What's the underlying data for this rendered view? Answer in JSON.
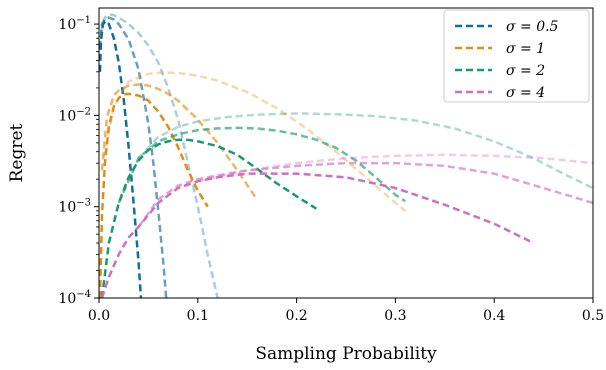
{
  "chart_data": {
    "type": "line",
    "xlabel": "Sampling Probability",
    "ylabel": "Regret",
    "xlim": [
      0.0,
      0.5
    ],
    "ylim": [
      0.0001,
      0.15
    ],
    "yscale": "log",
    "x_ticks": [
      0.0,
      0.1,
      0.2,
      0.3,
      0.4,
      0.5
    ],
    "x_tick_labels": [
      "0.0",
      "0.1",
      "0.2",
      "0.3",
      "0.4",
      "0.5"
    ],
    "y_ticks": [
      0.0001,
      0.001,
      0.01,
      0.1
    ],
    "y_tick_labels": [
      {
        "base": "10",
        "exp": "−4"
      },
      {
        "base": "10",
        "exp": "−3"
      },
      {
        "base": "10",
        "exp": "−2"
      },
      {
        "base": "10",
        "exp": "−1"
      }
    ],
    "grid": false,
    "legend_position": "top-right",
    "legend": [
      {
        "label": "σ = 0.5",
        "color": "#0f6ea0"
      },
      {
        "label": "σ = 1",
        "color": "#e08e12"
      },
      {
        "label": "σ = 2",
        "color": "#149a72"
      },
      {
        "label": "σ = 4",
        "color": "#cf6fbd"
      }
    ],
    "series": [
      {
        "name": "σ = 0.5",
        "color": "#0f6ea0",
        "opacity": 1.0,
        "x": [
          0.001,
          0.002,
          0.004,
          0.007,
          0.01,
          0.015,
          0.02,
          0.025,
          0.03,
          0.035,
          0.04,
          0.0425
        ],
        "y": [
          0.03,
          0.065,
          0.1,
          0.108,
          0.1,
          0.07,
          0.038,
          0.015,
          0.0045,
          0.0011,
          0.00025,
          0.0001
        ]
      },
      {
        "opacity": 0.65,
        "color": "#0f6ea0",
        "x": [
          0.001,
          0.003,
          0.006,
          0.01,
          0.015,
          0.02,
          0.03,
          0.04,
          0.05,
          0.055,
          0.06,
          0.065,
          0.068
        ],
        "y": [
          0.055,
          0.1,
          0.115,
          0.118,
          0.112,
          0.1,
          0.068,
          0.032,
          0.008,
          0.003,
          0.0009,
          0.00025,
          0.0001
        ]
      },
      {
        "opacity": 0.35,
        "color": "#0f6ea0",
        "x": [
          0.002,
          0.006,
          0.01,
          0.015,
          0.02,
          0.03,
          0.04,
          0.05,
          0.06,
          0.07,
          0.08,
          0.09,
          0.1,
          0.11,
          0.12
        ],
        "y": [
          0.08,
          0.118,
          0.128,
          0.125,
          0.118,
          0.1,
          0.08,
          0.058,
          0.038,
          0.02,
          0.009,
          0.003,
          0.001,
          0.0003,
          0.0001
        ]
      },
      {
        "name": "σ = 1",
        "color": "#e08e12",
        "opacity": 1.0,
        "x": [
          0.001,
          0.003,
          0.006,
          0.01,
          0.015,
          0.02,
          0.025,
          0.03,
          0.04,
          0.05,
          0.06,
          0.07,
          0.08,
          0.09,
          0.1,
          0.11
        ],
        "y": [
          0.0001,
          0.0008,
          0.003,
          0.0075,
          0.0125,
          0.0155,
          0.017,
          0.0172,
          0.0165,
          0.0145,
          0.011,
          0.0075,
          0.0045,
          0.0025,
          0.0015,
          0.001
        ]
      },
      {
        "opacity": 0.65,
        "color": "#e08e12",
        "x": [
          0.003,
          0.008,
          0.015,
          0.02,
          0.03,
          0.04,
          0.05,
          0.06,
          0.07,
          0.08,
          0.1,
          0.12,
          0.14,
          0.16
        ],
        "y": [
          0.0025,
          0.0095,
          0.0165,
          0.0188,
          0.0212,
          0.0218,
          0.0212,
          0.0195,
          0.0172,
          0.0145,
          0.009,
          0.005,
          0.0025,
          0.0012
        ]
      },
      {
        "opacity": 0.35,
        "color": "#e08e12",
        "x": [
          0.005,
          0.015,
          0.03,
          0.05,
          0.065,
          0.08,
          0.1,
          0.12,
          0.15,
          0.18,
          0.21,
          0.24,
          0.27,
          0.3,
          0.31
        ],
        "y": [
          0.0035,
          0.0125,
          0.0235,
          0.0285,
          0.0295,
          0.0292,
          0.0272,
          0.024,
          0.018,
          0.012,
          0.0072,
          0.004,
          0.0021,
          0.0011,
          0.0009
        ]
      },
      {
        "name": "σ = 2",
        "color": "#149a72",
        "opacity": 1.0,
        "x": [
          0.003,
          0.01,
          0.02,
          0.03,
          0.04,
          0.05,
          0.06,
          0.07,
          0.08,
          0.09,
          0.1,
          0.12,
          0.14,
          0.16,
          0.18,
          0.2,
          0.22
        ],
        "y": [
          0.0001,
          0.0004,
          0.0011,
          0.0021,
          0.0032,
          0.0042,
          0.0048,
          0.0052,
          0.0054,
          0.0054,
          0.0052,
          0.0046,
          0.0037,
          0.0026,
          0.0018,
          0.0013,
          0.00095
        ]
      },
      {
        "opacity": 0.65,
        "color": "#149a72",
        "x": [
          0.02,
          0.04,
          0.06,
          0.08,
          0.1,
          0.12,
          0.14,
          0.16,
          0.18,
          0.2,
          0.22,
          0.24,
          0.26,
          0.28,
          0.3,
          0.31
        ],
        "y": [
          0.0011,
          0.0034,
          0.0052,
          0.0062,
          0.0069,
          0.0072,
          0.0073,
          0.0072,
          0.0068,
          0.0062,
          0.0054,
          0.0044,
          0.0032,
          0.0021,
          0.00135,
          0.00115
        ]
      },
      {
        "opacity": 0.35,
        "color": "#149a72",
        "x": [
          0.04,
          0.06,
          0.08,
          0.1,
          0.13,
          0.16,
          0.2,
          0.24,
          0.28,
          0.32,
          0.36,
          0.4,
          0.44,
          0.47,
          0.5
        ],
        "y": [
          0.0034,
          0.0058,
          0.0075,
          0.0086,
          0.0096,
          0.0102,
          0.0105,
          0.0103,
          0.0098,
          0.0088,
          0.0072,
          0.0052,
          0.0034,
          0.0023,
          0.0016
        ]
      },
      {
        "name": "σ = 4",
        "color": "#cf6fbd",
        "opacity": 1.0,
        "x": [
          0.003,
          0.01,
          0.02,
          0.03,
          0.04,
          0.06,
          0.08,
          0.1,
          0.12,
          0.15,
          0.2,
          0.25,
          0.3,
          0.35,
          0.4,
          0.44
        ],
        "y": [
          0.0001,
          0.00017,
          0.0003,
          0.00046,
          0.0006,
          0.0011,
          0.0016,
          0.0019,
          0.0021,
          0.0023,
          0.0023,
          0.0021,
          0.0016,
          0.00105,
          0.00065,
          0.0004
        ]
      },
      {
        "opacity": 0.65,
        "color": "#cf6fbd",
        "x": [
          0.04,
          0.06,
          0.08,
          0.1,
          0.12,
          0.15,
          0.2,
          0.25,
          0.3,
          0.35,
          0.4,
          0.45,
          0.5
        ],
        "y": [
          0.0006,
          0.0012,
          0.0017,
          0.002,
          0.0022,
          0.0025,
          0.0028,
          0.003,
          0.003,
          0.0028,
          0.0023,
          0.0016,
          0.0011
        ]
      },
      {
        "opacity": 0.35,
        "color": "#cf6fbd",
        "x": [
          0.1,
          0.15,
          0.2,
          0.25,
          0.3,
          0.35,
          0.4,
          0.45,
          0.5
        ],
        "y": [
          0.0019,
          0.0025,
          0.003,
          0.0034,
          0.0036,
          0.0037,
          0.0036,
          0.0034,
          0.003
        ]
      }
    ]
  }
}
